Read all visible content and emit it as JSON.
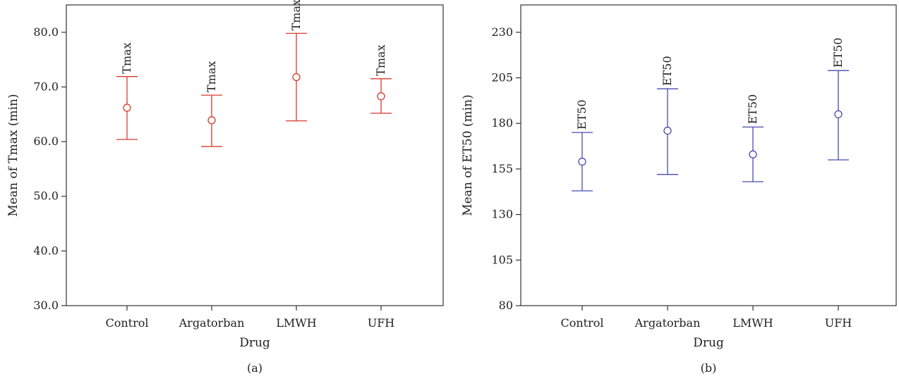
{
  "chart_data": [
    {
      "type": "errorbar",
      "panel_label": "(a)",
      "xlabel": "Drug",
      "ylabel": "Mean of Tmax (min)",
      "ylim": [
        30,
        85
      ],
      "y_ticks": [
        "30.0",
        "40.0",
        "50.0",
        "60.0",
        "70.0",
        "80.0"
      ],
      "y_tick_values": [
        30,
        40,
        50,
        60,
        70,
        80
      ],
      "categories": [
        "Control",
        "Argatorban",
        "LMWH",
        "UFH"
      ],
      "series": [
        {
          "color": "#d93a2b",
          "bar_label": "Tmax",
          "mean": [
            66.2,
            63.9,
            71.8,
            68.3
          ],
          "lower": [
            60.4,
            59.1,
            63.8,
            65.2
          ],
          "upper": [
            71.9,
            68.5,
            79.8,
            71.5
          ]
        }
      ]
    },
    {
      "type": "errorbar",
      "panel_label": "(b)",
      "xlabel": "Drug",
      "ylabel": "Mean of ET50 (min)",
      "ylim": [
        80,
        245
      ],
      "y_ticks": [
        "80",
        "105",
        "130",
        "155",
        "180",
        "205",
        "230"
      ],
      "y_tick_values": [
        80,
        105,
        130,
        155,
        180,
        205,
        230
      ],
      "categories": [
        "Control",
        "Argatorban",
        "LMWH",
        "UFH"
      ],
      "series": [
        {
          "color": "#4a4ab0",
          "bar_label": "ET50",
          "mean": [
            159,
            176,
            163,
            185
          ],
          "lower": [
            143,
            152,
            148,
            160
          ],
          "upper": [
            175,
            199,
            178,
            209
          ]
        }
      ]
    }
  ]
}
